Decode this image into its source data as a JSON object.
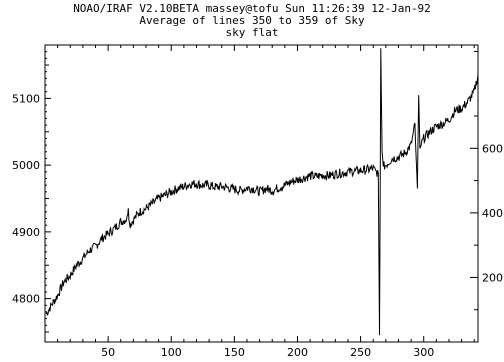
{
  "header": {
    "line1": "NOAO/IRAF V2.10BETA massey@tofu Sun 11:26:39 12-Jan-92",
    "line2": "Average of lines 350 to 359 of Sky",
    "line3": "sky flat"
  },
  "chart_data": {
    "type": "line",
    "title": "Average of lines 350 to 359 of Sky",
    "subtitle": "sky flat",
    "xlabel": "",
    "ylabel": "",
    "xlim": [
      0,
      343
    ],
    "ylim": [
      4735,
      5180
    ],
    "right_ylim": [
      0,
      920
    ],
    "grid": false,
    "x_ticks": [
      {
        "value": 50,
        "label": "50"
      },
      {
        "value": 100,
        "label": "100"
      },
      {
        "value": 150,
        "label": "150"
      },
      {
        "value": 200,
        "label": "200"
      },
      {
        "value": 250,
        "label": "250"
      },
      {
        "value": 300,
        "label": "300"
      }
    ],
    "y_ticks": [
      {
        "value": 4800,
        "label": "4800"
      },
      {
        "value": 4900,
        "label": "4900"
      },
      {
        "value": 5000,
        "label": "5000"
      },
      {
        "value": 5100,
        "label": "5100"
      }
    ],
    "right_y_ticks": [
      {
        "value": 200,
        "label": "200"
      },
      {
        "value": 400,
        "label": "400"
      },
      {
        "value": 600,
        "label": "600"
      }
    ],
    "series": [
      {
        "name": "",
        "x": [
          1,
          5,
          10,
          15,
          20,
          25,
          30,
          35,
          40,
          45,
          50,
          55,
          60,
          65,
          66,
          67,
          70,
          75,
          80,
          85,
          90,
          95,
          100,
          105,
          110,
          115,
          120,
          125,
          130,
          135,
          140,
          145,
          150,
          155,
          160,
          165,
          170,
          175,
          180,
          185,
          190,
          195,
          200,
          205,
          210,
          215,
          220,
          225,
          230,
          235,
          240,
          245,
          250,
          255,
          260,
          262,
          264,
          265,
          266,
          267,
          268,
          270,
          275,
          280,
          285,
          290,
          293,
          295,
          296,
          297,
          298,
          300,
          305,
          310,
          315,
          320,
          325,
          330,
          335,
          340,
          343
        ],
        "values": [
          4777,
          4790,
          4805,
          4825,
          4835,
          4850,
          4860,
          4872,
          4878,
          4890,
          4897,
          4905,
          4915,
          4920,
          4940,
          4910,
          4918,
          4930,
          4935,
          4942,
          4950,
          4955,
          4960,
          4965,
          4968,
          4972,
          4972,
          4970,
          4970,
          4967,
          4968,
          4966,
          4964,
          4962,
          4966,
          4965,
          4960,
          4965,
          4962,
          4966,
          4970,
          4975,
          4978,
          4981,
          4984,
          4983,
          4985,
          4984,
          4987,
          4988,
          4990,
          4991,
          4992,
          4993,
          4995,
          4990,
          4988,
          4745,
          5175,
          5020,
          4998,
          5000,
          5010,
          5012,
          5018,
          5030,
          5060,
          4965,
          5105,
          5025,
          5030,
          5040,
          5050,
          5058,
          5062,
          5068,
          5082,
          5085,
          5095,
          5110,
          5135
        ]
      }
    ]
  }
}
